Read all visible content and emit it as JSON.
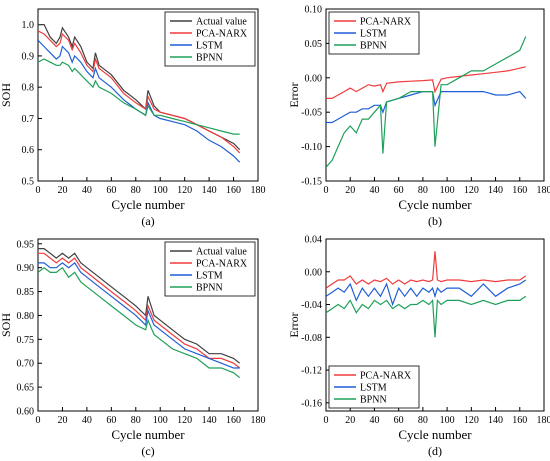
{
  "figure": {
    "panels": [
      {
        "id": "a",
        "caption": "(a)",
        "xlabel": "Cycle number",
        "ylabel": "SOH",
        "xlim": [
          0,
          180
        ],
        "ylim": [
          0.5,
          1.05
        ],
        "xticks": [
          "0",
          "20",
          "40",
          "60",
          "80",
          "100",
          "120",
          "140",
          "160",
          "180"
        ],
        "yticks": [
          "0.5",
          "0.6",
          "0.7",
          "0.8",
          "0.9",
          "1.0"
        ],
        "legend": {
          "position": "top-right",
          "entries": [
            "Actual value",
            "PCA-NARX",
            "LSTM",
            "BPNN"
          ]
        }
      },
      {
        "id": "b",
        "caption": "(b)",
        "xlabel": "Cycle number",
        "ylabel": "Error",
        "xlim": [
          0,
          180
        ],
        "ylim": [
          -0.15,
          0.1
        ],
        "xticks": [
          "0",
          "20",
          "40",
          "60",
          "80",
          "100",
          "120",
          "140",
          "160",
          "180"
        ],
        "yticks": [
          "-0.15",
          "-0.10",
          "-0.05",
          "0.00",
          "0.05",
          "0.10"
        ],
        "legend": {
          "position": "top-left",
          "entries": [
            "PCA-NARX",
            "LSTM",
            "BPNN"
          ]
        }
      },
      {
        "id": "c",
        "caption": "(c)",
        "xlabel": "Cycle number",
        "ylabel": "SOH",
        "xlim": [
          0,
          180
        ],
        "ylim": [
          0.6,
          0.96
        ],
        "xticks": [
          "0",
          "20",
          "40",
          "60",
          "80",
          "100",
          "120",
          "140",
          "160",
          "180"
        ],
        "yticks": [
          "0.60",
          "0.65",
          "0.70",
          "0.75",
          "0.80",
          "0.85",
          "0.90",
          "0.95"
        ],
        "legend": {
          "position": "top-right",
          "entries": [
            "Actual value",
            "PCA-NARX",
            "LSTM",
            "BPNN"
          ]
        }
      },
      {
        "id": "d",
        "caption": "(d)",
        "xlabel": "Cycle number",
        "ylabel": "Error",
        "xlim": [
          0,
          180
        ],
        "ylim": [
          -0.17,
          0.04
        ],
        "xticks": [
          "0",
          "20",
          "40",
          "60",
          "80",
          "100",
          "120",
          "140",
          "160",
          "180"
        ],
        "yticks": [
          "-0.16",
          "-0.12",
          "-0.08",
          "-0.04",
          "0.00",
          "0.04"
        ],
        "legend": {
          "position": "bottom-left",
          "entries": [
            "PCA-NARX",
            "LSTM",
            "BPNN"
          ]
        }
      }
    ]
  },
  "colors": {
    "actual": "#404040",
    "pca_narx": "#f03c3c",
    "lstm": "#1f5fd6",
    "bpnn": "#1fa05a",
    "axis": "#000000"
  },
  "chart_data": [
    {
      "type": "line",
      "panel": "a",
      "title": "",
      "xlabel": "Cycle number",
      "ylabel": "SOH",
      "xlim": [
        0,
        180
      ],
      "ylim": [
        0.5,
        1.05
      ],
      "grid": false,
      "legend": "top-right",
      "x": [
        0,
        5,
        10,
        15,
        18,
        20,
        25,
        28,
        30,
        35,
        40,
        45,
        47,
        50,
        60,
        70,
        80,
        88,
        90,
        95,
        100,
        110,
        120,
        130,
        140,
        150,
        160,
        165
      ],
      "series": [
        {
          "name": "Actual value",
          "color": "#404040",
          "values": [
            1.0,
            1.0,
            0.96,
            0.94,
            0.96,
            0.99,
            0.96,
            0.93,
            0.96,
            0.93,
            0.88,
            0.86,
            0.91,
            0.87,
            0.84,
            0.79,
            0.76,
            0.73,
            0.79,
            0.74,
            0.72,
            0.71,
            0.7,
            0.68,
            0.66,
            0.64,
            0.62,
            0.6
          ]
        },
        {
          "name": "PCA-NARX",
          "color": "#f03c3c",
          "values": [
            0.98,
            0.97,
            0.95,
            0.93,
            0.94,
            0.97,
            0.95,
            0.92,
            0.94,
            0.91,
            0.87,
            0.85,
            0.89,
            0.86,
            0.83,
            0.78,
            0.75,
            0.73,
            0.77,
            0.73,
            0.72,
            0.71,
            0.7,
            0.68,
            0.66,
            0.64,
            0.61,
            0.59
          ]
        },
        {
          "name": "LSTM",
          "color": "#1f5fd6",
          "values": [
            0.95,
            0.93,
            0.91,
            0.89,
            0.9,
            0.93,
            0.91,
            0.88,
            0.9,
            0.88,
            0.85,
            0.83,
            0.86,
            0.83,
            0.8,
            0.76,
            0.73,
            0.71,
            0.75,
            0.71,
            0.7,
            0.69,
            0.68,
            0.66,
            0.63,
            0.61,
            0.58,
            0.56
          ]
        },
        {
          "name": "BPNN",
          "color": "#1fa05a",
          "values": [
            0.88,
            0.89,
            0.88,
            0.87,
            0.87,
            0.88,
            0.87,
            0.85,
            0.86,
            0.84,
            0.82,
            0.8,
            0.82,
            0.8,
            0.78,
            0.75,
            0.73,
            0.71,
            0.74,
            0.71,
            0.71,
            0.7,
            0.69,
            0.68,
            0.67,
            0.66,
            0.65,
            0.65
          ]
        }
      ]
    },
    {
      "type": "line",
      "panel": "b",
      "title": "",
      "xlabel": "Cycle number",
      "ylabel": "Error",
      "xlim": [
        0,
        180
      ],
      "ylim": [
        -0.15,
        0.1
      ],
      "grid": false,
      "legend": "top-left",
      "x": [
        0,
        5,
        10,
        15,
        20,
        25,
        30,
        35,
        40,
        45,
        47,
        50,
        60,
        70,
        80,
        88,
        90,
        95,
        100,
        110,
        120,
        130,
        140,
        150,
        160,
        165
      ],
      "series": [
        {
          "name": "PCA-NARX",
          "color": "#f03c3c",
          "values": [
            -0.03,
            -0.03,
            -0.025,
            -0.02,
            -0.015,
            -0.02,
            -0.015,
            -0.01,
            -0.012,
            -0.01,
            -0.02,
            -0.008,
            -0.006,
            -0.005,
            -0.004,
            -0.003,
            -0.02,
            -0.002,
            0.0,
            0.002,
            0.004,
            0.006,
            0.008,
            0.01,
            0.014,
            0.016
          ]
        },
        {
          "name": "LSTM",
          "color": "#1f5fd6",
          "values": [
            -0.065,
            -0.065,
            -0.06,
            -0.055,
            -0.05,
            -0.05,
            -0.045,
            -0.045,
            -0.04,
            -0.04,
            -0.05,
            -0.035,
            -0.03,
            -0.025,
            -0.02,
            -0.02,
            -0.04,
            -0.02,
            -0.02,
            -0.02,
            -0.02,
            -0.02,
            -0.025,
            -0.025,
            -0.02,
            -0.03
          ]
        },
        {
          "name": "BPNN",
          "color": "#1fa05a",
          "values": [
            -0.13,
            -0.12,
            -0.1,
            -0.08,
            -0.07,
            -0.08,
            -0.06,
            -0.06,
            -0.05,
            -0.04,
            -0.11,
            -0.035,
            -0.03,
            -0.02,
            -0.02,
            -0.02,
            -0.1,
            -0.01,
            -0.01,
            0.0,
            0.01,
            0.01,
            0.02,
            0.03,
            0.04,
            0.06
          ]
        }
      ]
    },
    {
      "type": "line",
      "panel": "c",
      "title": "",
      "xlabel": "Cycle number",
      "ylabel": "SOH",
      "xlim": [
        0,
        180
      ],
      "ylim": [
        0.6,
        0.96
      ],
      "grid": false,
      "legend": "top-right",
      "x": [
        0,
        5,
        10,
        15,
        20,
        25,
        30,
        35,
        40,
        50,
        60,
        70,
        80,
        88,
        90,
        95,
        100,
        110,
        120,
        130,
        140,
        150,
        160,
        165
      ],
      "series": [
        {
          "name": "Actual value",
          "color": "#404040",
          "values": [
            0.94,
            0.94,
            0.93,
            0.92,
            0.93,
            0.92,
            0.93,
            0.91,
            0.9,
            0.88,
            0.86,
            0.84,
            0.82,
            0.8,
            0.84,
            0.8,
            0.79,
            0.77,
            0.75,
            0.74,
            0.72,
            0.72,
            0.71,
            0.7
          ]
        },
        {
          "name": "PCA-NARX",
          "color": "#f03c3c",
          "values": [
            0.93,
            0.93,
            0.92,
            0.91,
            0.92,
            0.91,
            0.92,
            0.9,
            0.89,
            0.87,
            0.85,
            0.83,
            0.81,
            0.79,
            0.82,
            0.79,
            0.78,
            0.76,
            0.74,
            0.73,
            0.71,
            0.71,
            0.7,
            0.69
          ]
        },
        {
          "name": "LSTM",
          "color": "#1f5fd6",
          "values": [
            0.91,
            0.91,
            0.9,
            0.9,
            0.91,
            0.9,
            0.91,
            0.89,
            0.88,
            0.86,
            0.84,
            0.82,
            0.8,
            0.78,
            0.81,
            0.78,
            0.77,
            0.75,
            0.73,
            0.72,
            0.71,
            0.7,
            0.69,
            0.69
          ]
        },
        {
          "name": "BPNN",
          "color": "#1fa05a",
          "values": [
            0.89,
            0.9,
            0.89,
            0.89,
            0.9,
            0.88,
            0.89,
            0.87,
            0.86,
            0.84,
            0.82,
            0.8,
            0.78,
            0.77,
            0.79,
            0.76,
            0.75,
            0.73,
            0.72,
            0.71,
            0.69,
            0.69,
            0.68,
            0.67
          ]
        }
      ]
    },
    {
      "type": "line",
      "panel": "d",
      "title": "",
      "xlabel": "Cycle number",
      "ylabel": "Error",
      "xlim": [
        0,
        180
      ],
      "ylim": [
        -0.17,
        0.04
      ],
      "grid": false,
      "legend": "bottom-left",
      "x": [
        0,
        5,
        10,
        15,
        20,
        25,
        30,
        35,
        40,
        45,
        50,
        55,
        60,
        65,
        70,
        75,
        80,
        85,
        88,
        90,
        92,
        95,
        100,
        110,
        120,
        130,
        140,
        150,
        160,
        165
      ],
      "series": [
        {
          "name": "PCA-NARX",
          "color": "#f03c3c",
          "values": [
            -0.02,
            -0.015,
            -0.01,
            -0.01,
            -0.005,
            -0.015,
            -0.01,
            -0.015,
            -0.01,
            -0.012,
            -0.008,
            -0.015,
            -0.01,
            -0.015,
            -0.01,
            -0.012,
            -0.01,
            -0.012,
            -0.01,
            0.025,
            -0.01,
            -0.012,
            -0.01,
            -0.01,
            -0.012,
            -0.01,
            -0.012,
            -0.01,
            -0.01,
            -0.005
          ]
        },
        {
          "name": "LSTM",
          "color": "#1f5fd6",
          "values": [
            -0.03,
            -0.025,
            -0.02,
            -0.025,
            -0.015,
            -0.035,
            -0.02,
            -0.03,
            -0.02,
            -0.03,
            -0.015,
            -0.04,
            -0.02,
            -0.03,
            -0.02,
            -0.03,
            -0.02,
            -0.025,
            -0.02,
            -0.03,
            -0.02,
            -0.025,
            -0.02,
            -0.02,
            -0.03,
            -0.015,
            -0.03,
            -0.02,
            -0.015,
            -0.01
          ]
        },
        {
          "name": "BPNN",
          "color": "#1fa05a",
          "values": [
            -0.05,
            -0.045,
            -0.04,
            -0.045,
            -0.035,
            -0.05,
            -0.04,
            -0.045,
            -0.035,
            -0.04,
            -0.035,
            -0.045,
            -0.04,
            -0.045,
            -0.04,
            -0.04,
            -0.035,
            -0.04,
            -0.035,
            -0.08,
            -0.035,
            -0.04,
            -0.035,
            -0.035,
            -0.04,
            -0.035,
            -0.04,
            -0.035,
            -0.035,
            -0.03
          ]
        }
      ]
    }
  ]
}
